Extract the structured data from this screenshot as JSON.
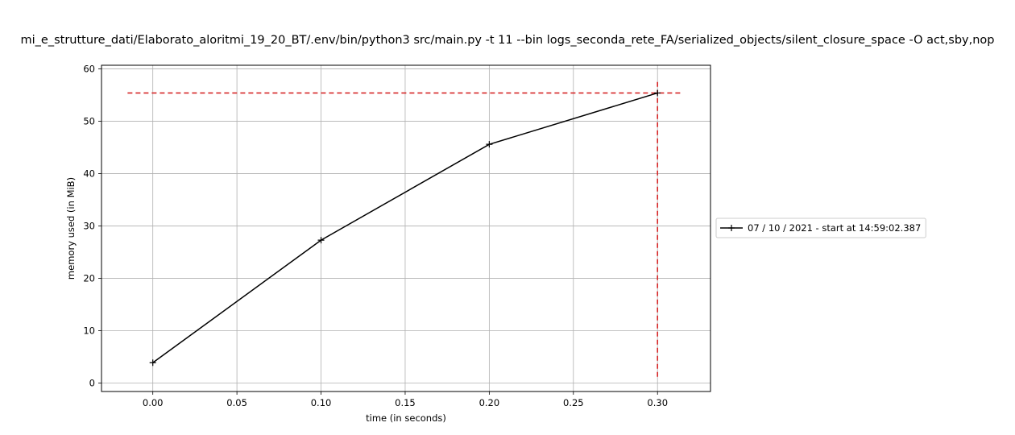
{
  "chart_data": {
    "type": "line",
    "title": "mi_e_strutture_dati/Elaborato_aloritmi_19_20_BT/.env/bin/python3 src/main.py -t 11 --bin logs_seconda_rete_FA/serialized_objects/silent_closure_space -O act,sby,nop",
    "xlabel": "time (in seconds)",
    "ylabel": "memory used (in MiB)",
    "xlim": [
      -0.0305,
      0.3315
    ],
    "ylim": [
      -1.6,
      60.7
    ],
    "xticks": [
      0.0,
      0.05,
      0.1,
      0.15,
      0.2,
      0.25,
      0.3
    ],
    "xtick_labels": [
      "0.00",
      "0.05",
      "0.10",
      "0.15",
      "0.20",
      "0.25",
      "0.30"
    ],
    "yticks": [
      0,
      10,
      20,
      30,
      40,
      50,
      60
    ],
    "ytick_labels": [
      "0",
      "10",
      "20",
      "30",
      "40",
      "50",
      "60"
    ],
    "grid": true,
    "legend_position": "center-right outside",
    "series": [
      {
        "name": "07 / 10 / 2021 - start at 14:59:02.387",
        "color": "#000000",
        "marker": "plus",
        "x": [
          0.0,
          0.1,
          0.2,
          0.3
        ],
        "y": [
          3.9,
          27.3,
          45.6,
          55.4
        ]
      }
    ],
    "annotations": {
      "max_memory_hline": {
        "y": 55.4,
        "x_from": -0.015,
        "x_to": 0.315,
        "color": "#d62728",
        "style": "dashed"
      },
      "max_time_vline": {
        "x": 0.3,
        "y_from": 1.2,
        "y_to": 57.9,
        "color": "#d62728",
        "style": "dashed"
      }
    }
  }
}
